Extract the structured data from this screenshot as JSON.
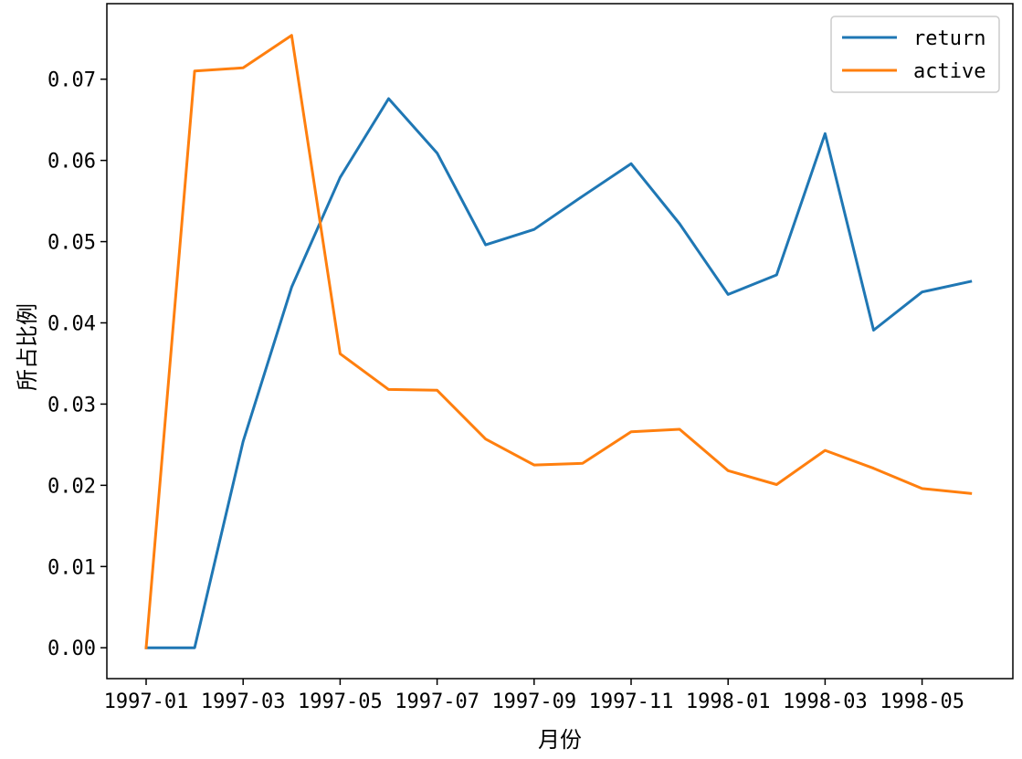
{
  "chart_data": {
    "type": "line",
    "title": "",
    "xlabel": "月份",
    "ylabel": "所占比例",
    "x": [
      "1997-01",
      "1997-02",
      "1997-03",
      "1997-04",
      "1997-05",
      "1997-06",
      "1997-07",
      "1997-08",
      "1997-09",
      "1997-10",
      "1997-11",
      "1997-12",
      "1998-01",
      "1998-02",
      "1998-03",
      "1998-04",
      "1998-05",
      "1998-06"
    ],
    "x_tick_labels": [
      "1997-01",
      "1997-03",
      "1997-05",
      "1997-07",
      "1997-09",
      "1997-11",
      "1998-01",
      "1998-03",
      "1998-05"
    ],
    "y_tick_labels": [
      "0.00",
      "0.01",
      "0.02",
      "0.03",
      "0.04",
      "0.05",
      "0.06",
      "0.07"
    ],
    "ylim": [
      -0.0038,
      0.0793
    ],
    "grid": false,
    "legend_position": "top-right",
    "series": [
      {
        "name": "return",
        "color": "#1f77b4",
        "values": [
          0.0,
          0.0,
          0.0254,
          0.0444,
          0.0579,
          0.0676,
          0.0609,
          0.0496,
          0.0515,
          0.0556,
          0.0596,
          0.0522,
          0.0435,
          0.0459,
          0.0633,
          0.0391,
          0.0438,
          0.0451
        ]
      },
      {
        "name": "active",
        "color": "#ff7f0e",
        "values": [
          0.0,
          0.071,
          0.0714,
          0.0754,
          0.0362,
          0.0318,
          0.0317,
          0.0257,
          0.0225,
          0.0227,
          0.0266,
          0.0269,
          0.0218,
          0.0201,
          0.0243,
          0.0221,
          0.0196,
          0.019
        ]
      }
    ]
  }
}
